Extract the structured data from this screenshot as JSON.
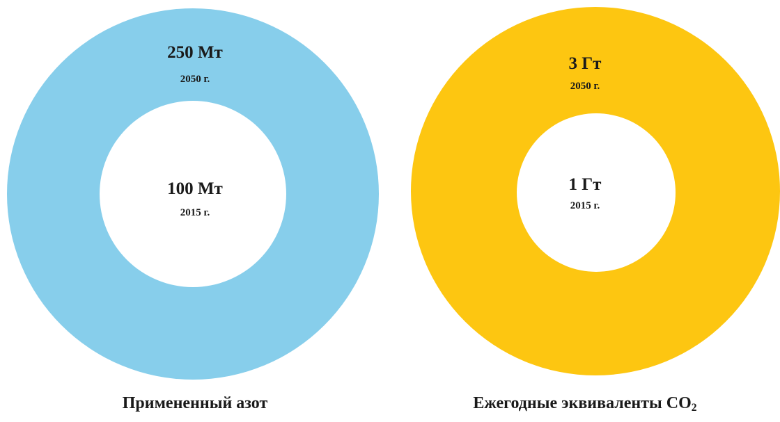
{
  "chart_data": [
    {
      "type": "donut",
      "title": "Применённый азот",
      "caption": "Примененный азот",
      "color": "#87CEEB",
      "outer": {
        "value": "250 Мт",
        "year": "2050 г.",
        "number": 250,
        "unit": "Мт"
      },
      "inner": {
        "value": "100 Мт",
        "year": "2015 г.",
        "number": 100,
        "unit": "Мт"
      }
    },
    {
      "type": "donut",
      "caption_main": "Ежегодные эквиваленты CO",
      "caption_sub": "2",
      "color": "#FDC611",
      "outer": {
        "value": "3 Гт",
        "year": "2050 г.",
        "number": 3,
        "unit": "Гт"
      },
      "inner": {
        "value": "1 Гт",
        "year": "2015 г.",
        "number": 1,
        "unit": "Гт"
      }
    }
  ]
}
